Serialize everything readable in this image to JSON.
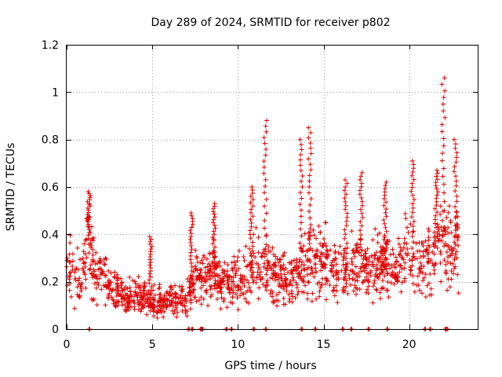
{
  "chart_data": {
    "type": "scatter",
    "title": "Day 289 of 2024, SRMTID for receiver p802",
    "xlabel": "GPS time / hours",
    "ylabel": "SRMTID / TECUs",
    "xlim": [
      0,
      24
    ],
    "ylim": [
      0,
      1.2
    ],
    "xticks": [
      0,
      5,
      10,
      15,
      20
    ],
    "yticks": [
      0,
      0.2,
      0.4,
      0.6,
      0.8,
      1.0,
      1.2
    ],
    "xtick_labels": [
      "0",
      "5",
      "10",
      "15",
      "20"
    ],
    "ytick_labels": [
      "0",
      "0.2",
      "0.4",
      "0.6",
      "0.8",
      "1",
      "1.2"
    ],
    "grid": true,
    "marker": "+",
    "color": "#e00000",
    "trend": [
      [
        0.0,
        0.27
      ],
      [
        0.5,
        0.22
      ],
      [
        0.9,
        0.2
      ],
      [
        1.2,
        0.4
      ],
      [
        1.6,
        0.25
      ],
      [
        2.0,
        0.24
      ],
      [
        2.5,
        0.18
      ],
      [
        3.0,
        0.17
      ],
      [
        3.5,
        0.14
      ],
      [
        4.0,
        0.14
      ],
      [
        4.5,
        0.13
      ],
      [
        5.0,
        0.12
      ],
      [
        5.5,
        0.11
      ],
      [
        6.0,
        0.12
      ],
      [
        6.5,
        0.12
      ],
      [
        7.0,
        0.12
      ],
      [
        7.5,
        0.22
      ],
      [
        8.0,
        0.22
      ],
      [
        8.5,
        0.25
      ],
      [
        9.0,
        0.2
      ],
      [
        9.5,
        0.19
      ],
      [
        10.0,
        0.2
      ],
      [
        10.5,
        0.24
      ],
      [
        11.0,
        0.27
      ],
      [
        11.5,
        0.27
      ],
      [
        12.0,
        0.23
      ],
      [
        12.5,
        0.2
      ],
      [
        13.0,
        0.2
      ],
      [
        13.5,
        0.21
      ],
      [
        14.0,
        0.3
      ],
      [
        14.5,
        0.28
      ],
      [
        15.0,
        0.3
      ],
      [
        15.5,
        0.25
      ],
      [
        16.0,
        0.25
      ],
      [
        16.5,
        0.23
      ],
      [
        17.0,
        0.28
      ],
      [
        17.5,
        0.27
      ],
      [
        18.0,
        0.28
      ],
      [
        18.5,
        0.27
      ],
      [
        19.0,
        0.24
      ],
      [
        19.5,
        0.28
      ],
      [
        20.0,
        0.33
      ],
      [
        20.5,
        0.27
      ],
      [
        21.0,
        0.28
      ],
      [
        21.5,
        0.34
      ],
      [
        22.0,
        0.35
      ],
      [
        22.5,
        0.3
      ],
      [
        22.9,
        0.33
      ]
    ],
    "peaks": [
      {
        "x": 1.3,
        "y": 0.58
      },
      {
        "x": 4.9,
        "y": 0.39
      },
      {
        "x": 7.3,
        "y": 0.49
      },
      {
        "x": 8.6,
        "y": 0.53
      },
      {
        "x": 10.8,
        "y": 0.6
      },
      {
        "x": 11.6,
        "y": 0.88
      },
      {
        "x": 13.7,
        "y": 0.8
      },
      {
        "x": 14.2,
        "y": 0.85
      },
      {
        "x": 16.3,
        "y": 0.63
      },
      {
        "x": 17.2,
        "y": 0.66
      },
      {
        "x": 18.6,
        "y": 0.62
      },
      {
        "x": 20.2,
        "y": 0.71
      },
      {
        "x": 21.6,
        "y": 0.67
      },
      {
        "x": 22.0,
        "y": 1.06
      },
      {
        "x": 22.7,
        "y": 0.8
      }
    ],
    "zero_points_x": [
      1.3,
      7.1,
      7.3,
      7.8,
      7.9,
      9.3,
      9.6,
      10.9,
      11.6,
      13.7,
      14.5,
      16.1,
      16.6,
      17.6,
      18.7,
      20.9,
      21.2,
      22.1,
      22.2
    ]
  }
}
